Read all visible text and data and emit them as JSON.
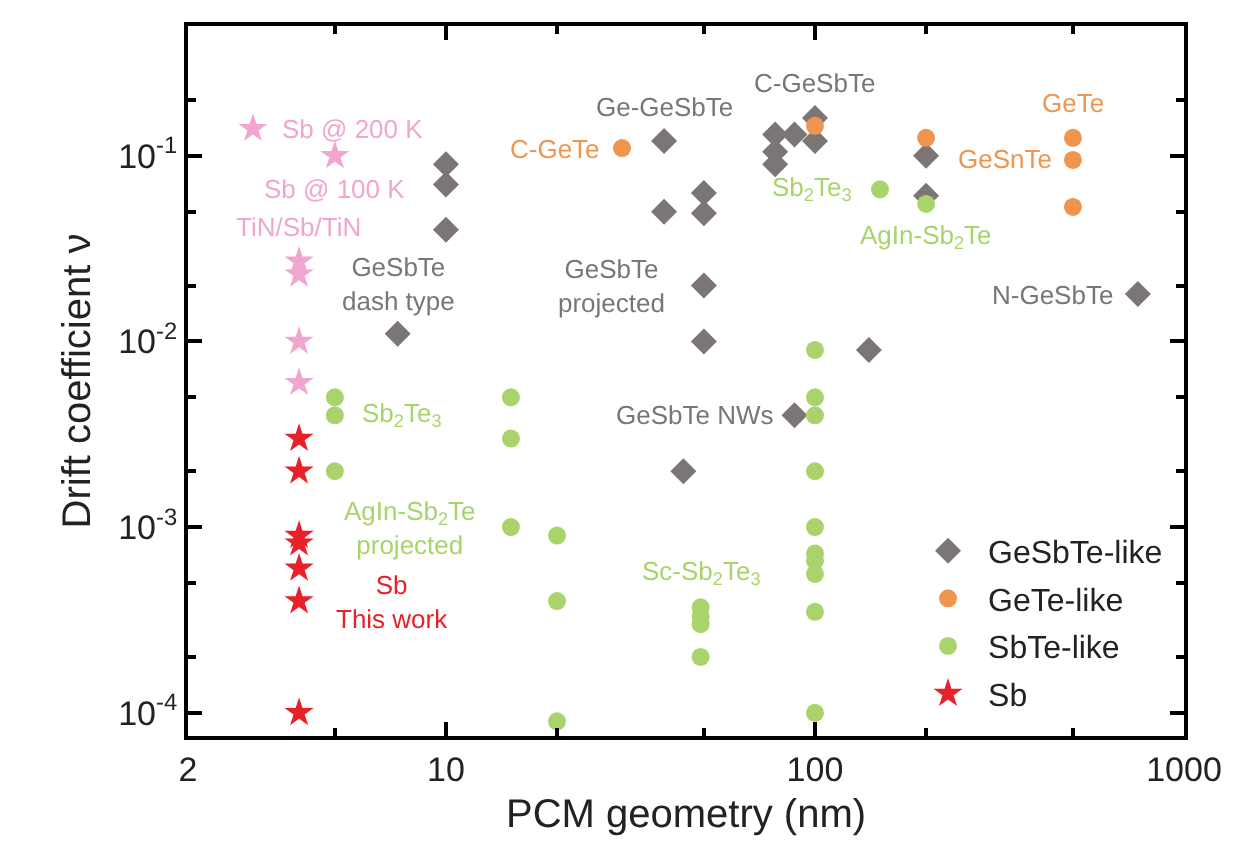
{
  "chart_data": {
    "type": "scatter",
    "xlabel": "PCM geometry (nm)",
    "ylabel": "Drift coefficient ν",
    "xlim": [
      2,
      1000
    ],
    "xticks": [
      2,
      10,
      100,
      1000
    ],
    "ylim": [
      7.5e-05,
      0.5
    ],
    "yticks": [
      {
        "value": 0.0001,
        "label": "10$^{-4}$"
      },
      {
        "value": 0.001,
        "label": "10$^{-3}$"
      },
      {
        "value": 0.01,
        "label": "10$^{-2}$"
      },
      {
        "value": 0.1,
        "label": "10$^{-1}$"
      }
    ],
    "log": "xy",
    "grid": false,
    "legend": "bottom right",
    "series": [
      {
        "name": "GeSbTe-like",
        "color": "#7b7575",
        "marker": "diamond",
        "x": [
          10,
          10,
          10,
          7.4,
          39,
          39,
          50,
          50,
          50,
          50,
          78,
          78,
          78,
          88,
          100,
          100,
          200,
          200,
          140,
          750,
          88,
          44
        ],
        "values": [
          0.09,
          0.07,
          0.04,
          0.011,
          0.12,
          0.05,
          0.063,
          0.049,
          0.02,
          0.01,
          0.13,
          0.105,
          0.09,
          0.13,
          0.16,
          0.12,
          0.1,
          0.061,
          0.009,
          0.018,
          0.004,
          0.002
        ]
      },
      {
        "name": "GeTe-like",
        "color": "#f0954f",
        "marker": "circle",
        "x": [
          30,
          100,
          200,
          500,
          500,
          500
        ],
        "values": [
          0.11,
          0.145,
          0.125,
          0.125,
          0.095,
          0.053
        ]
      },
      {
        "name": "SbTe-like",
        "color": "#a9d46c",
        "marker": "circle",
        "x": [
          150,
          200,
          5,
          5,
          5,
          15,
          15,
          15,
          20,
          20,
          20,
          100,
          100,
          100,
          100,
          100,
          100,
          100,
          100,
          100,
          100,
          49,
          49,
          49,
          49
        ],
        "values": [
          0.066,
          0.055,
          0.005,
          0.004,
          0.002,
          0.005,
          0.003,
          0.001,
          0.0009,
          0.0004,
          9e-05,
          0.009,
          0.005,
          0.004,
          0.002,
          0.001,
          0.00072,
          0.00066,
          0.00056,
          0.00035,
          0.0001,
          0.00037,
          0.00033,
          0.0003,
          0.0002
        ]
      },
      {
        "color": "#f2a6cf",
        "marker": "star",
        "x": [
          3,
          5,
          4,
          4,
          4,
          4
        ],
        "values": [
          0.14,
          0.1,
          0.027,
          0.023,
          0.01,
          0.006
        ]
      },
      {
        "name": "Sb",
        "color": "#e8202a",
        "marker": "star",
        "x": [
          4,
          4,
          4,
          4,
          4,
          4,
          4
        ],
        "values": [
          0.003,
          0.002,
          0.0009,
          0.00082,
          0.0006,
          0.0004,
          0.0001
        ]
      }
    ],
    "annotations": [
      {
        "text": "Sb @ 200 K",
        "x": 3,
        "y": 0.14
      },
      {
        "text": "Sb @ 100 K",
        "x": 5,
        "y": 0.1
      },
      {
        "text": "TiN/Sb/TiN",
        "x": 4,
        "y": 0.027
      },
      {
        "text": "GeSbTe\ndash type",
        "x": 7.4,
        "y": 0.011
      },
      {
        "text": "Ge-GeSbTe",
        "x": 39,
        "y": 0.12
      },
      {
        "text": "C-GeSbTe",
        "x": 100,
        "y": 0.16
      },
      {
        "text": "C-GeTe",
        "x": 30,
        "y": 0.11
      },
      {
        "text": "GeTe",
        "x": 500,
        "y": 0.125
      },
      {
        "text": "GeSnTe",
        "x": 500,
        "y": 0.095
      },
      {
        "text": "Sb$_{2}$Te$_{3}$",
        "x": 150,
        "y": 0.066
      },
      {
        "text": "AgIn-Sb$_{2}$Te",
        "x": 200,
        "y": 0.055
      },
      {
        "text": "GeSbTe\nprojected",
        "x": 50,
        "y": 0.02
      },
      {
        "text": "N-GeSbTe",
        "x": 750,
        "y": 0.018
      },
      {
        "text": "GeSbTe NWs",
        "x": 88,
        "y": 0.004
      },
      {
        "text": "Sb$_{2}$Te$_{3}$",
        "x": 5,
        "y": 0.004
      },
      {
        "text": "AgIn-Sb$_{2}$Te\nprojected",
        "x": 15,
        "y": 0.001
      },
      {
        "text": "Sc-Sb$_{2}$Te$_{3}$",
        "x": 49,
        "y": 0.00037
      },
      {
        "text": "Sb\nThis work",
        "x": 4,
        "y": 0.0004
      }
    ]
  }
}
